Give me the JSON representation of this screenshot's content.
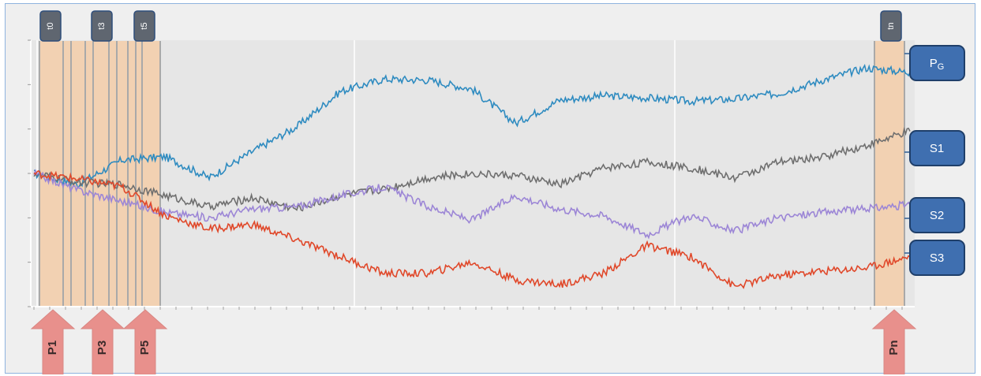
{
  "chart_data": {
    "type": "line",
    "title": "",
    "xlabel": "",
    "ylabel": "",
    "grid": true,
    "legend": "right",
    "x": [
      0,
      5,
      10,
      15,
      20,
      25,
      30,
      35,
      40,
      45,
      50,
      55,
      60,
      65,
      70,
      75,
      80,
      85,
      90,
      95,
      100
    ],
    "series": [
      {
        "name": "P_G",
        "color": "#2e8bc0",
        "values": [
          0.0,
          -0.1,
          0.12,
          0.15,
          -0.04,
          0.2,
          0.42,
          0.74,
          0.85,
          0.84,
          0.76,
          0.45,
          0.66,
          0.7,
          0.68,
          0.65,
          0.67,
          0.72,
          0.84,
          0.95,
          0.91
        ]
      },
      {
        "name": "S1",
        "color": "#6f6f6f",
        "values": [
          0.0,
          -0.08,
          -0.1,
          -0.2,
          -0.3,
          -0.22,
          -0.32,
          -0.2,
          -0.14,
          -0.04,
          0.0,
          -0.02,
          -0.1,
          0.05,
          0.1,
          0.05,
          -0.04,
          0.1,
          0.15,
          0.25,
          0.38
        ]
      },
      {
        "name": "S2",
        "color": "#9c86d6",
        "values": [
          0.0,
          -0.15,
          -0.25,
          -0.35,
          -0.4,
          -0.32,
          -0.3,
          -0.2,
          -0.12,
          -0.3,
          -0.42,
          -0.2,
          -0.32,
          -0.38,
          -0.55,
          -0.38,
          -0.52,
          -0.4,
          -0.35,
          -0.32,
          -0.28
        ]
      },
      {
        "name": "S3",
        "color": "#e0482a",
        "values": [
          0.0,
          -0.05,
          -0.12,
          -0.38,
          -0.5,
          -0.46,
          -0.6,
          -0.75,
          -0.9,
          -0.9,
          -0.8,
          -0.96,
          -1.0,
          -0.9,
          -0.65,
          -0.75,
          -1.02,
          -0.92,
          -0.88,
          -0.85,
          -0.75
        ]
      }
    ],
    "ylim": [
      -1.2,
      1.2
    ],
    "checkpoints": [
      "t0",
      "t3",
      "t5",
      "tn"
    ],
    "events": [
      "P1",
      "P3",
      "P5",
      "Pn"
    ],
    "end_labels": {
      "main": "P",
      "sub": "G",
      "s1": "S1",
      "s2": "S2",
      "s3": "S3"
    }
  }
}
